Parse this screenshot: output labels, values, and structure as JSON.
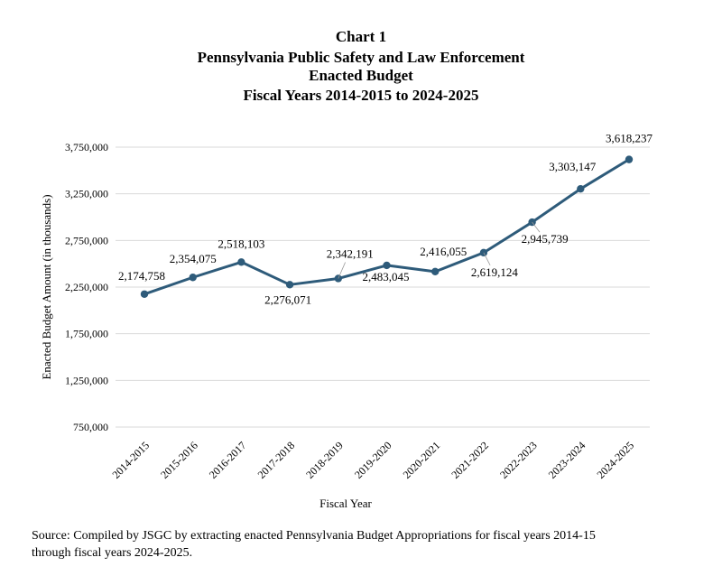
{
  "chart_data": {
    "type": "line",
    "title_lines": [
      "Chart 1",
      "Pennsylvania Public Safety and Law Enforcement",
      "Enacted Budget",
      "Fiscal Years 2014-2015 to 2024-2025"
    ],
    "xlabel": "Fiscal Year",
    "ylabel": "Enacted Budget Amount (in thousands)",
    "categories": [
      "2014-2015",
      "2015-2016",
      "2016-2017",
      "2017-2018",
      "2018-2019",
      "2019-2020",
      "2020-2021",
      "2021-2022",
      "2022-2023",
      "2023-2024",
      "2024-2025"
    ],
    "values": [
      2174758,
      2354075,
      2518103,
      2276071,
      2342191,
      2483045,
      2416055,
      2619124,
      2945739,
      3303147,
      3618237
    ],
    "data_labels": [
      "2,174,758",
      "2,354,075",
      "2,518,103",
      "2,276,071",
      "2,342,191",
      "2,483,045",
      "2,416,055",
      "2,619,124",
      "2,945,739",
      "3,303,147",
      "3,618,237"
    ],
    "ylim": [
      750000,
      3750000
    ],
    "yticks": [
      750000,
      1250000,
      1750000,
      2250000,
      2750000,
      3250000,
      3750000
    ],
    "ytick_labels": [
      "750,000",
      "1,250,000",
      "1,750,000",
      "2,250,000",
      "2,750,000",
      "3,250,000",
      "3,750,000"
    ],
    "grid": true,
    "line_color": "#2e5b7a",
    "grid_color": "#d9d9d9"
  },
  "source_lines": [
    "Source: Compiled by JSGC by extracting enacted Pennsylvania Budget Appropriations for fiscal years 2014-15",
    "through fiscal years 2024-2025."
  ]
}
